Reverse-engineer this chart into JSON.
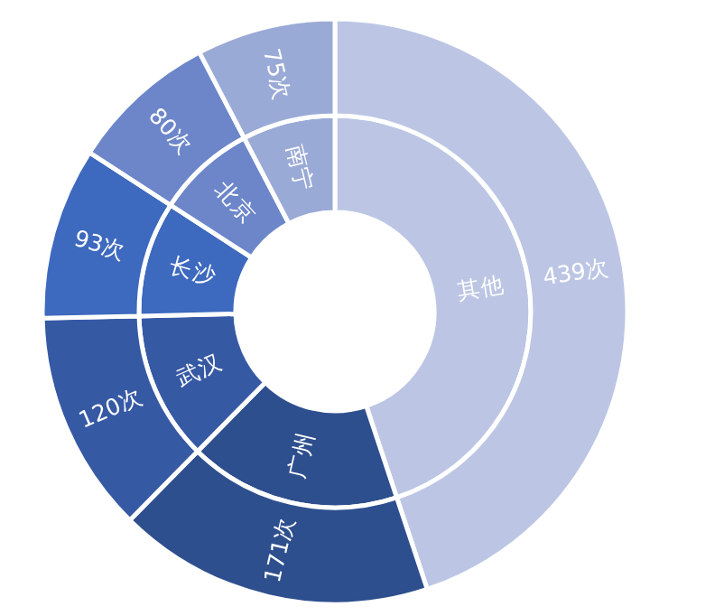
{
  "chart_data": {
    "type": "donut",
    "categories": [
      "其他",
      "广州",
      "武汉",
      "长沙",
      "北京",
      "南宁"
    ],
    "colors": [
      "#bcc6e4",
      "#2e4f8e",
      "#3659a4",
      "#3d69be",
      "#6c86c9",
      "#9aaad6"
    ],
    "series": [
      {
        "values": [
          44.89,
          17.48,
          12.27,
          9.51,
          8.18,
          7.67
        ]
      },
      {
        "values": [
          439,
          171,
          120,
          93,
          80,
          75
        ],
        "value_labels": [
          "439次",
          "171次",
          "120次",
          "93次",
          "80次",
          "75次"
        ]
      }
    ],
    "legend": false
  }
}
